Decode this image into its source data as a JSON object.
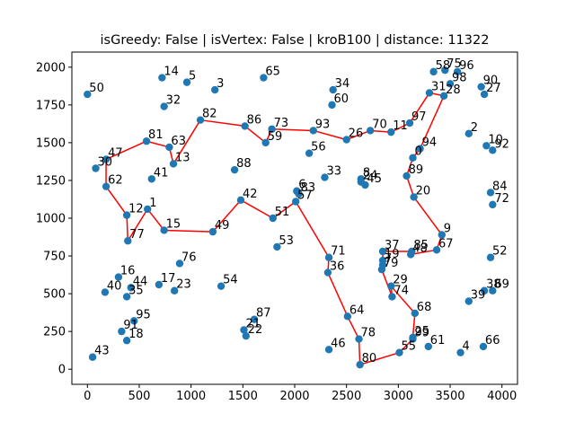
{
  "chart_data": {
    "type": "scatter",
    "title": "isGreedy: False | isVertex: False | kroB100 | distance: 11322",
    "xlabel": "",
    "ylabel": "",
    "xlim": [
      -150,
      4150
    ],
    "ylim": [
      -100,
      2100
    ],
    "xticks": [
      0,
      500,
      1000,
      1500,
      2000,
      2500,
      3000,
      3500,
      4000
    ],
    "yticks": [
      0,
      250,
      500,
      750,
      1000,
      1250,
      1500,
      1750,
      2000
    ],
    "grid": false,
    "legend": "none",
    "point_color": "#1f77b4",
    "path_color": "#ff0000",
    "points": [
      {
        "label": "0",
        "x": 3140,
        "y": 1400
      },
      {
        "label": "1",
        "x": 580,
        "y": 1060
      },
      {
        "label": "2",
        "x": 3680,
        "y": 1560
      },
      {
        "label": "3",
        "x": 1230,
        "y": 1850
      },
      {
        "label": "4",
        "x": 3600,
        "y": 110
      },
      {
        "label": "5",
        "x": 960,
        "y": 1900
      },
      {
        "label": "6",
        "x": 2020,
        "y": 1180
      },
      {
        "label": "7",
        "x": 2850,
        "y": 690
      },
      {
        "label": "8",
        "x": 2640,
        "y": 1260
      },
      {
        "label": "9",
        "x": 3420,
        "y": 890
      },
      {
        "label": "10",
        "x": 3850,
        "y": 1480
      },
      {
        "label": "11",
        "x": 2930,
        "y": 1570
      },
      {
        "label": "12",
        "x": 380,
        "y": 1020
      },
      {
        "label": "13",
        "x": 830,
        "y": 1360
      },
      {
        "label": "14",
        "x": 720,
        "y": 1930
      },
      {
        "label": "15",
        "x": 740,
        "y": 920
      },
      {
        "label": "16",
        "x": 300,
        "y": 610
      },
      {
        "label": "17",
        "x": 690,
        "y": 560
      },
      {
        "label": "18",
        "x": 380,
        "y": 190
      },
      {
        "label": "19",
        "x": 2850,
        "y": 720
      },
      {
        "label": "20",
        "x": 3150,
        "y": 1140
      },
      {
        "label": "21",
        "x": 1510,
        "y": 260
      },
      {
        "label": "22",
        "x": 1530,
        "y": 220
      },
      {
        "label": "23",
        "x": 840,
        "y": 520
      },
      {
        "label": "24",
        "x": 2640,
        "y": 1240
      },
      {
        "label": "25",
        "x": 3140,
        "y": 210
      },
      {
        "label": "26",
        "x": 2500,
        "y": 1520
      },
      {
        "label": "27",
        "x": 3830,
        "y": 1820
      },
      {
        "label": "28",
        "x": 3440,
        "y": 1810
      },
      {
        "label": "29",
        "x": 2930,
        "y": 550
      },
      {
        "label": "30",
        "x": 80,
        "y": 1330
      },
      {
        "label": "31",
        "x": 3300,
        "y": 1830
      },
      {
        "label": "32",
        "x": 740,
        "y": 1740
      },
      {
        "label": "33",
        "x": 2290,
        "y": 1270
      },
      {
        "label": "34",
        "x": 2370,
        "y": 1850
      },
      {
        "label": "35",
        "x": 380,
        "y": 480
      },
      {
        "label": "36",
        "x": 2320,
        "y": 640
      },
      {
        "label": "37",
        "x": 2850,
        "y": 780
      },
      {
        "label": "38",
        "x": 3830,
        "y": 520
      },
      {
        "label": "39",
        "x": 3680,
        "y": 450
      },
      {
        "label": "40",
        "x": 170,
        "y": 510
      },
      {
        "label": "41",
        "x": 620,
        "y": 1260
      },
      {
        "label": "42",
        "x": 1480,
        "y": 1120
      },
      {
        "label": "43",
        "x": 50,
        "y": 80
      },
      {
        "label": "44",
        "x": 420,
        "y": 540
      },
      {
        "label": "45",
        "x": 2680,
        "y": 1220
      },
      {
        "label": "46",
        "x": 2330,
        "y": 130
      },
      {
        "label": "47",
        "x": 180,
        "y": 1390
      },
      {
        "label": "48",
        "x": 3120,
        "y": 760
      },
      {
        "label": "49",
        "x": 1210,
        "y": 910
      },
      {
        "label": "50",
        "x": 0,
        "y": 1820
      },
      {
        "label": "51",
        "x": 1790,
        "y": 1000
      },
      {
        "label": "52",
        "x": 3890,
        "y": 740
      },
      {
        "label": "53",
        "x": 1830,
        "y": 810
      },
      {
        "label": "54",
        "x": 1290,
        "y": 550
      },
      {
        "label": "55",
        "x": 3010,
        "y": 110
      },
      {
        "label": "56",
        "x": 2140,
        "y": 1430
      },
      {
        "label": "57",
        "x": 2010,
        "y": 1110
      },
      {
        "label": "58",
        "x": 3340,
        "y": 1970
      },
      {
        "label": "59",
        "x": 1720,
        "y": 1500
      },
      {
        "label": "60",
        "x": 2360,
        "y": 1750
      },
      {
        "label": "61",
        "x": 3290,
        "y": 150
      },
      {
        "label": "62",
        "x": 180,
        "y": 1210
      },
      {
        "label": "63",
        "x": 790,
        "y": 1470
      },
      {
        "label": "64",
        "x": 2510,
        "y": 350
      },
      {
        "label": "65",
        "x": 1700,
        "y": 1930
      },
      {
        "label": "66",
        "x": 3820,
        "y": 150
      },
      {
        "label": "67",
        "x": 3370,
        "y": 790
      },
      {
        "label": "68",
        "x": 3160,
        "y": 370
      },
      {
        "label": "69",
        "x": 3910,
        "y": 520
      },
      {
        "label": "70",
        "x": 2730,
        "y": 1580
      },
      {
        "label": "71",
        "x": 2330,
        "y": 740
      },
      {
        "label": "72",
        "x": 3910,
        "y": 1090
      },
      {
        "label": "73",
        "x": 1780,
        "y": 1590
      },
      {
        "label": "74",
        "x": 2940,
        "y": 480
      },
      {
        "label": "75",
        "x": 3450,
        "y": 1980
      },
      {
        "label": "76",
        "x": 890,
        "y": 700
      },
      {
        "label": "77",
        "x": 390,
        "y": 850
      },
      {
        "label": "78",
        "x": 2620,
        "y": 200
      },
      {
        "label": "79",
        "x": 2840,
        "y": 660
      },
      {
        "label": "80",
        "x": 2630,
        "y": 30
      },
      {
        "label": "81",
        "x": 570,
        "y": 1510
      },
      {
        "label": "82",
        "x": 1090,
        "y": 1650
      },
      {
        "label": "83",
        "x": 2040,
        "y": 1160
      },
      {
        "label": "84",
        "x": 3890,
        "y": 1170
      },
      {
        "label": "85",
        "x": 3130,
        "y": 780
      },
      {
        "label": "86",
        "x": 1520,
        "y": 1610
      },
      {
        "label": "87",
        "x": 1610,
        "y": 330
      },
      {
        "label": "88",
        "x": 1420,
        "y": 1320
      },
      {
        "label": "89",
        "x": 3080,
        "y": 1280
      },
      {
        "label": "90",
        "x": 3800,
        "y": 1870
      },
      {
        "label": "91",
        "x": 330,
        "y": 250
      },
      {
        "label": "92",
        "x": 3910,
        "y": 1450
      },
      {
        "label": "93",
        "x": 2180,
        "y": 1580
      },
      {
        "label": "94",
        "x": 3210,
        "y": 1460
      },
      {
        "label": "95",
        "x": 450,
        "y": 320
      },
      {
        "label": "96",
        "x": 3570,
        "y": 1970
      },
      {
        "label": "97",
        "x": 3110,
        "y": 1630
      },
      {
        "label": "98",
        "x": 3500,
        "y": 1890
      },
      {
        "label": "99",
        "x": 3140,
        "y": 200
      }
    ],
    "path": [
      80,
      78,
      64,
      36,
      71,
      57,
      51,
      42,
      49,
      15,
      1,
      77,
      12,
      62,
      47,
      81,
      63,
      13,
      82,
      86,
      59,
      73,
      93,
      26,
      70,
      11,
      97,
      31,
      28,
      94,
      0,
      89,
      20,
      9,
      67,
      48,
      85,
      37,
      19,
      79,
      74,
      29,
      68,
      25,
      99,
      55,
      80
    ]
  }
}
